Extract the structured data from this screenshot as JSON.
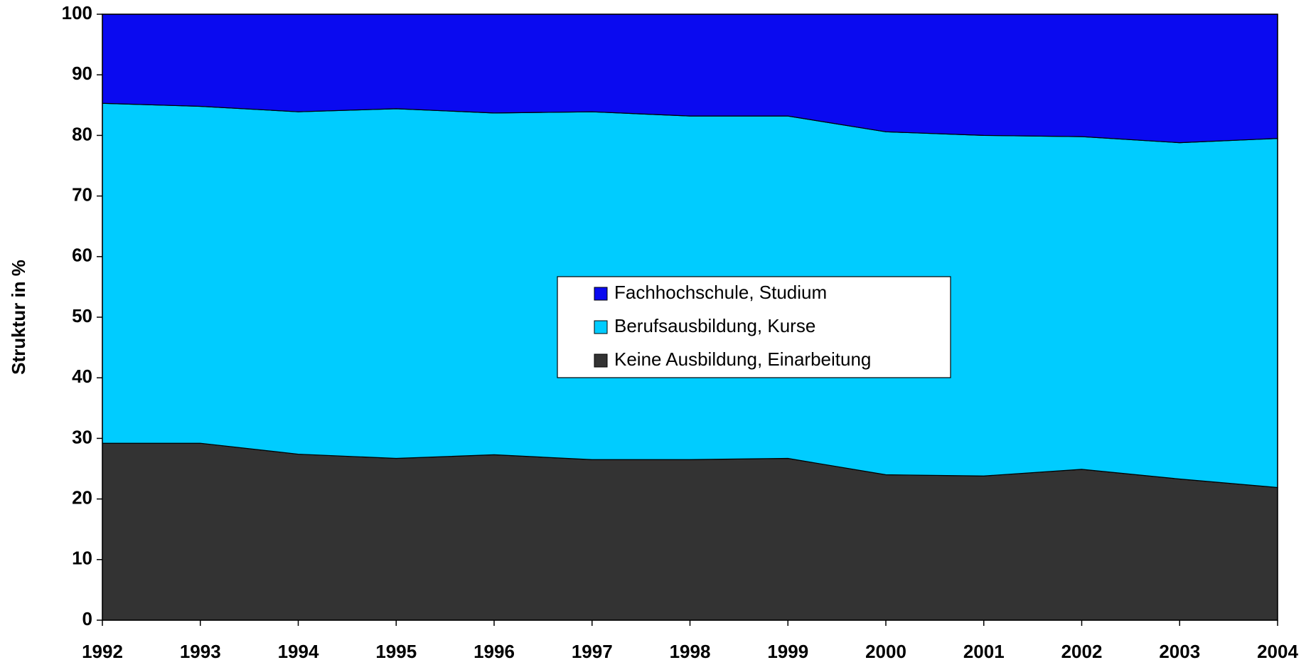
{
  "chart_data": {
    "type": "stacked_area",
    "y_label": "Struktur in %",
    "x": [
      1992,
      1993,
      1994,
      1995,
      1996,
      1997,
      1998,
      1999,
      2000,
      2001,
      2002,
      2003,
      2004
    ],
    "xlim": [
      1992,
      2004
    ],
    "xticks": [
      1992,
      1993,
      1994,
      1995,
      1996,
      1997,
      1998,
      1999,
      2000,
      2001,
      2002,
      2003,
      2004
    ],
    "ylim": [
      0,
      100
    ],
    "yticks": [
      0,
      10,
      20,
      30,
      40,
      50,
      60,
      70,
      80,
      90,
      100
    ],
    "legend": "center",
    "series": [
      {
        "name": "Fachhochschule, Studium",
        "color": "#0a0af0",
        "values": [
          14.7,
          15.2,
          16.1,
          15.6,
          16.3,
          16.1,
          16.8,
          16.8,
          19.4,
          20.0,
          20.2,
          21.2,
          20.5
        ]
      },
      {
        "name": "Berufsausbildung, Kurse",
        "color": "#00ccff",
        "values": [
          56.1,
          55.6,
          56.5,
          57.7,
          56.4,
          57.4,
          56.7,
          56.5,
          56.6,
          56.2,
          54.9,
          55.5,
          57.6
        ]
      },
      {
        "name": "Keine Ausbildung, Einarbeitung",
        "color": "#333333",
        "values": [
          29.2,
          29.2,
          27.4,
          26.7,
          27.3,
          26.5,
          26.5,
          26.7,
          24.0,
          23.8,
          24.9,
          23.3,
          21.9
        ]
      }
    ]
  }
}
